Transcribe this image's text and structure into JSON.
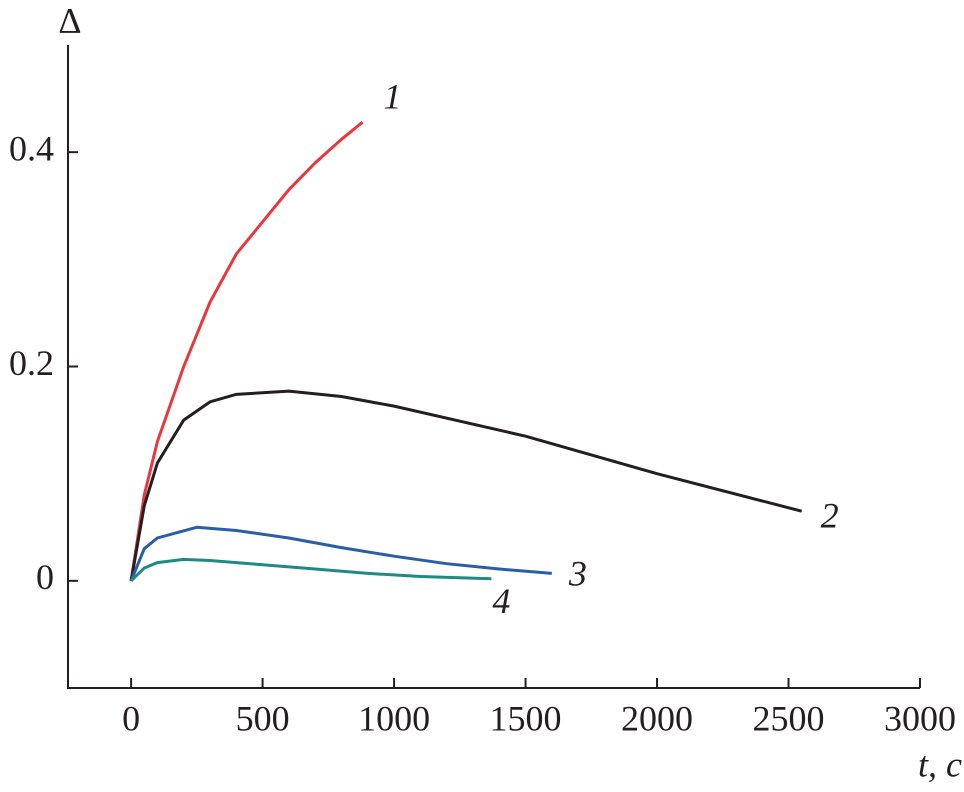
{
  "chart_data": {
    "type": "line",
    "x_label": "t, c",
    "y_label": "Δ",
    "xlim": [
      -240,
      3000
    ],
    "ylim": [
      -0.1,
      0.5
    ],
    "xticks": [
      0,
      500,
      1000,
      1500,
      2000,
      2500,
      3000
    ],
    "yticks": [
      0,
      0.2,
      0.4
    ],
    "series": [
      {
        "name": "1",
        "color": "#e8383d",
        "x": [
          0,
          50,
          100,
          200,
          300,
          400,
          500,
          600,
          700,
          800,
          880
        ],
        "values": [
          0,
          0.08,
          0.13,
          0.2,
          0.26,
          0.305,
          0.335,
          0.365,
          0.39,
          0.412,
          0.428
        ]
      },
      {
        "name": "2",
        "color": "#231f20",
        "x": [
          0,
          50,
          100,
          200,
          300,
          400,
          600,
          800,
          1000,
          1500,
          2000,
          2550
        ],
        "values": [
          0,
          0.07,
          0.11,
          0.15,
          0.167,
          0.174,
          0.177,
          0.172,
          0.163,
          0.135,
          0.1,
          0.065
        ]
      },
      {
        "name": "3",
        "color": "#2b5ea8",
        "x": [
          0,
          50,
          100,
          250,
          400,
          600,
          800,
          1000,
          1200,
          1400,
          1600
        ],
        "values": [
          0,
          0.03,
          0.04,
          0.05,
          0.047,
          0.04,
          0.031,
          0.023,
          0.016,
          0.011,
          0.007
        ]
      },
      {
        "name": "4",
        "color": "#1e8a84",
        "x": [
          0,
          50,
          100,
          200,
          300,
          500,
          700,
          900,
          1100,
          1370
        ],
        "values": [
          0,
          0.012,
          0.017,
          0.02,
          0.019,
          0.015,
          0.011,
          0.007,
          0.004,
          0.002
        ]
      }
    ]
  }
}
